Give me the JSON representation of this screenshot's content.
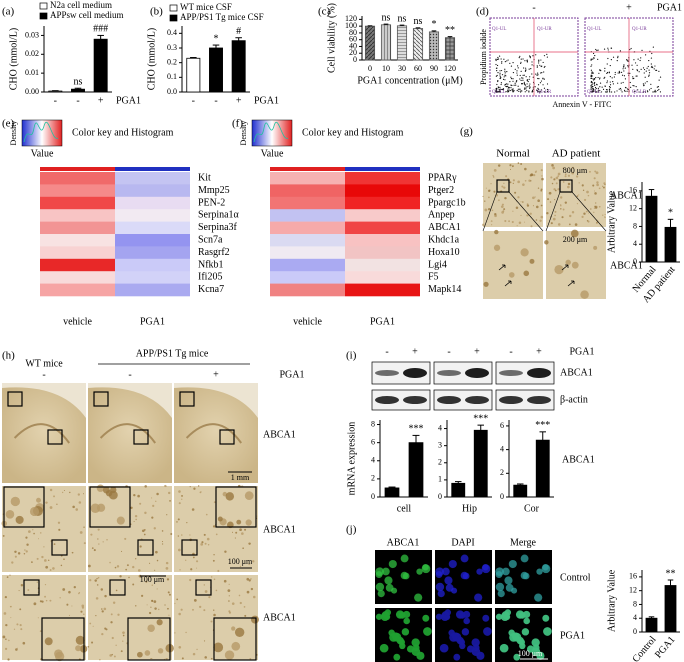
{
  "panel_labels": [
    "(a)",
    "(b)",
    "(c)",
    "(d)",
    "(e)",
    "(f)",
    "(g)",
    "(h)",
    "(i)",
    "(j)"
  ],
  "chart_data": [
    {
      "type": "bar",
      "ylabel": "CHO (mmol/L)",
      "xlabel": "PGA1",
      "categories": [
        "-",
        "-",
        "+"
      ],
      "series": [
        {
          "name": "N2a cell medium",
          "color": "#ffffff",
          "values": [
            0.0005,
            null,
            null
          ],
          "errors": [
            0.0002,
            null,
            null
          ]
        },
        {
          "name": "APPsw cell medium",
          "color": "#000000",
          "values": [
            null,
            0.0015,
            0.028
          ],
          "errors": [
            null,
            0.0005,
            0.002
          ]
        }
      ],
      "annotations": [
        null,
        "ns",
        "###"
      ],
      "ylim": [
        0,
        0.035
      ],
      "yticks": [
        {
          "value": 0,
          "label": "0.00"
        },
        {
          "value": 0.01,
          "label": "0.01"
        },
        {
          "value": 0.02,
          "label": "0.02"
        },
        {
          "value": 0.03,
          "label": "0.03"
        }
      ]
    },
    {
      "type": "bar",
      "ylabel": "CHO (mmol/L)",
      "xlabel": "PGA1",
      "categories": [
        "-",
        "-",
        "+"
      ],
      "series": [
        {
          "name": "WT mice CSF",
          "color": "#ffffff",
          "values": [
            0.23,
            null,
            null
          ],
          "errors": [
            0.005,
            null,
            null
          ]
        },
        {
          "name": "APP/PS1 Tg mice CSF",
          "color": "#000000",
          "values": [
            null,
            0.3,
            0.35
          ],
          "errors": [
            null,
            0.02,
            0.02
          ]
        }
      ],
      "annotations": [
        null,
        "*",
        "#"
      ],
      "ylim": [
        0,
        0.45
      ],
      "yticks": [
        {
          "value": 0,
          "label": "0.0"
        },
        0.1,
        0.2,
        0.3,
        0.4
      ]
    },
    {
      "type": "bar",
      "ylabel": "Cell viability (%)",
      "xlabel": "PGA1 concentration (μM)",
      "categories": [
        "0",
        "10",
        "30",
        "60",
        "90",
        "120"
      ],
      "color": "#555555",
      "values": [
        100,
        104,
        101,
        93,
        83,
        66
      ],
      "errors": [
        1,
        2,
        2,
        2,
        3,
        3
      ],
      "annotations": [
        null,
        "ns",
        "ns",
        "ns",
        "*",
        "**"
      ],
      "ylim": [
        0,
        130
      ],
      "yticks": [
        0,
        20,
        40,
        60,
        80,
        100,
        120
      ]
    },
    {
      "type": "bar",
      "ylabel": "Arbitrary Value",
      "categories": [
        "Normal",
        "AD patient"
      ],
      "color": "#000000",
      "values": [
        14.8,
        7.8
      ],
      "errors": [
        1.5,
        1.8
      ],
      "annotations": [
        null,
        "*"
      ],
      "ylim": [
        0,
        18
      ],
      "yticks": [
        0,
        4,
        8,
        12,
        16
      ]
    },
    {
      "type": "bar",
      "ylabel": "mRNA expression",
      "xlabel": "cell",
      "categories": [
        null,
        null
      ],
      "color": "#000000",
      "values": [
        1,
        6
      ],
      "errors": [
        0.1,
        0.8
      ],
      "annotations": [
        null,
        "***"
      ],
      "ylim": [
        0,
        8.5
      ],
      "yticks": [
        0,
        2,
        4,
        6,
        8
      ]
    },
    {
      "type": "bar",
      "xlabel": "Hip",
      "categories": [
        null,
        null
      ],
      "color": "#000000",
      "values": [
        0.8,
        3.9
      ],
      "errors": [
        0.1,
        0.3
      ],
      "annotations": [
        null,
        "***"
      ],
      "ylim": [
        0,
        4.5
      ],
      "yticks": [
        0,
        1,
        2,
        3,
        4
      ]
    },
    {
      "type": "bar",
      "xlabel": "Cor",
      "categories": [
        null,
        null
      ],
      "color": "#000000",
      "values": [
        1,
        4.8
      ],
      "errors": [
        0.1,
        0.7
      ],
      "annotations": [
        null,
        "***"
      ],
      "ylim": [
        0,
        6.5
      ],
      "yticks": [
        0,
        2,
        4,
        6
      ]
    },
    {
      "type": "bar",
      "ylabel": "Arbitrary Value",
      "categories": [
        "Control",
        "PGA1"
      ],
      "color": "#000000",
      "values": [
        4,
        13.5
      ],
      "errors": [
        0.4,
        1.6
      ],
      "annotations": [
        null,
        "**"
      ],
      "ylim": [
        0,
        18
      ],
      "yticks": [
        0,
        4,
        8,
        12,
        16
      ]
    }
  ],
  "flow": {
    "conditions": [
      "-",
      "+"
    ],
    "treatment": "PGA1",
    "ylabel": "Propidium iodide",
    "xlabel": "Annexin V - FITC",
    "quadrants": [
      "Q1-UL",
      "Q1-UR",
      "Q1-LL",
      "Q1-LR"
    ]
  },
  "heatmaps": [
    {
      "key_title": "Color key and Histogram",
      "key_ylabel": "Density",
      "key_xlabel": "Value",
      "columns": [
        "vehicle",
        "PGA1"
      ],
      "column_colors": [
        "#e02020",
        "#2030c0"
      ],
      "genes": [
        "Kit",
        "Mmp25",
        "PEN-2",
        "Serpina1α",
        "Serpina3f",
        "Scn7a",
        "Rasgrf2",
        "Nfkb1",
        "Ifi205",
        "Kcna7"
      ],
      "cells": [
        [
          "#f06a6a",
          "#c4c4f2"
        ],
        [
          "#f58a8a",
          "#b8b8f0"
        ],
        [
          "#f04848",
          "#e8dcf2"
        ],
        [
          "#f8c4c4",
          "#f2eaf2"
        ],
        [
          "#f29494",
          "#dadaf8"
        ],
        [
          "#f8e2e2",
          "#9494f0"
        ],
        [
          "#f8d2d2",
          "#a4a4f0"
        ],
        [
          "#e82828",
          "#cacaf8"
        ],
        [
          "#f8dada",
          "#d2d2f8"
        ],
        [
          "#f6a4a4",
          "#aaaaf0"
        ]
      ]
    },
    {
      "key_title": "Color key and Histogram",
      "key_ylabel": "Density",
      "key_xlabel": "Value",
      "columns": [
        "vehicle",
        "PGA1"
      ],
      "column_colors": [
        "#e02020",
        "#2030c0"
      ],
      "genes": [
        "PPARγ",
        "Ptger2",
        "Ppargc1b",
        "Anpep",
        "ABCA1",
        "Khdc1a",
        "Hoxa10",
        "Lgi4",
        "F5",
        "Mapk14"
      ],
      "cells": [
        [
          "#f6b2b2",
          "#f03434"
        ],
        [
          "#f06464",
          "#e80808"
        ],
        [
          "#f27474",
          "#f02424"
        ],
        [
          "#c2c2f2",
          "#f8caca"
        ],
        [
          "#f6aaaa",
          "#f04444"
        ],
        [
          "#dadaf2",
          "#f8c2c2"
        ],
        [
          "#f0eaf2",
          "#f2c4c4"
        ],
        [
          "#aaaaf2",
          "#f2e2e2"
        ],
        [
          "#cacaf8",
          "#f8dada"
        ],
        [
          "#f08282",
          "#e81414"
        ]
      ]
    }
  ],
  "histology_g": {
    "columns": [
      "Normal",
      "AD patient"
    ],
    "row_labels": [
      "ABCA1",
      "ABCA1"
    ],
    "scale_bars": [
      "800 μm",
      "200 μm"
    ]
  },
  "histology_h": {
    "groups": [
      "WT mice",
      "APP/PS1 Tg mice"
    ],
    "conditions": [
      "-",
      "-",
      "+"
    ],
    "treatment": "PGA1",
    "row_labels": [
      "ABCA1",
      "ABCA1",
      "ABCA1"
    ],
    "scale_bars": [
      "1 mm",
      "100 μm",
      "100 μm"
    ]
  },
  "blot_i": {
    "conditions": [
      "-",
      "+",
      "-",
      "+",
      "-",
      "+"
    ],
    "treatment": "PGA1",
    "bands": [
      "ABCA1",
      "β-actin"
    ],
    "chart_label": "ABCA1"
  },
  "fluorescence_j": {
    "channels": [
      "ABCA1",
      "DAPI",
      "Merge"
    ],
    "rows": [
      "Control",
      "PGA1"
    ],
    "scale_bar": "100 μm"
  }
}
